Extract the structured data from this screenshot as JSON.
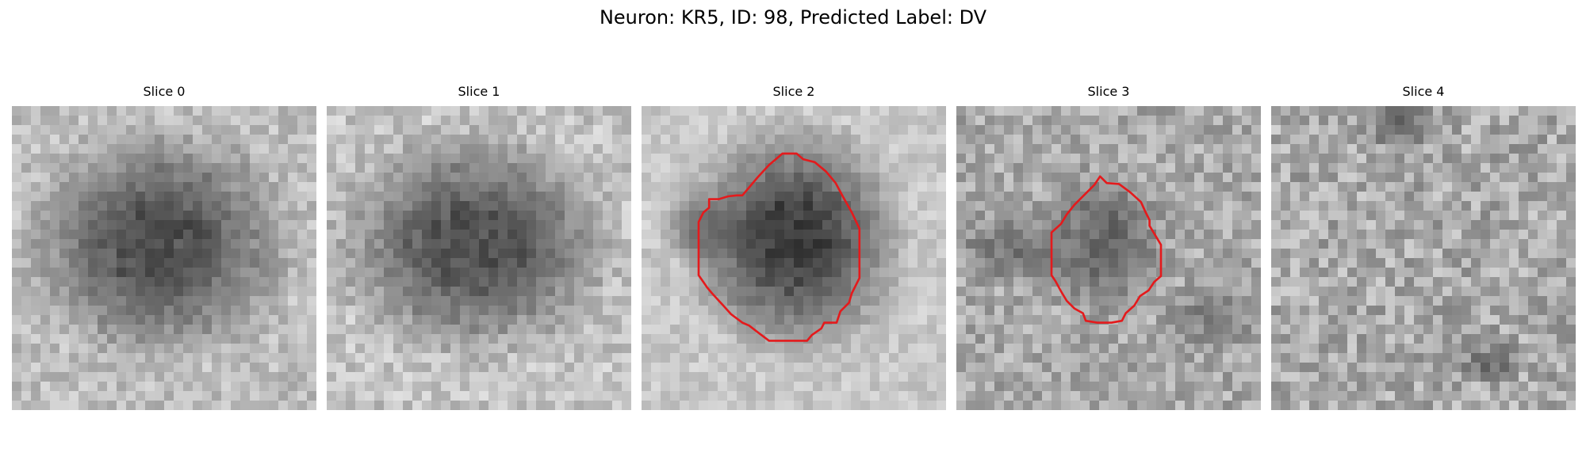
{
  "figure": {
    "title": "Neuron: KR5, ID: 98, Predicted Label: DV"
  },
  "contour_color": "#e41a1c",
  "panels": [
    {
      "title": "Slice 0",
      "has_contour": false
    },
    {
      "title": "Slice 1",
      "has_contour": false
    },
    {
      "title": "Slice 2",
      "has_contour": true
    },
    {
      "title": "Slice 3",
      "has_contour": true
    },
    {
      "title": "Slice 4",
      "has_contour": false
    }
  ]
}
